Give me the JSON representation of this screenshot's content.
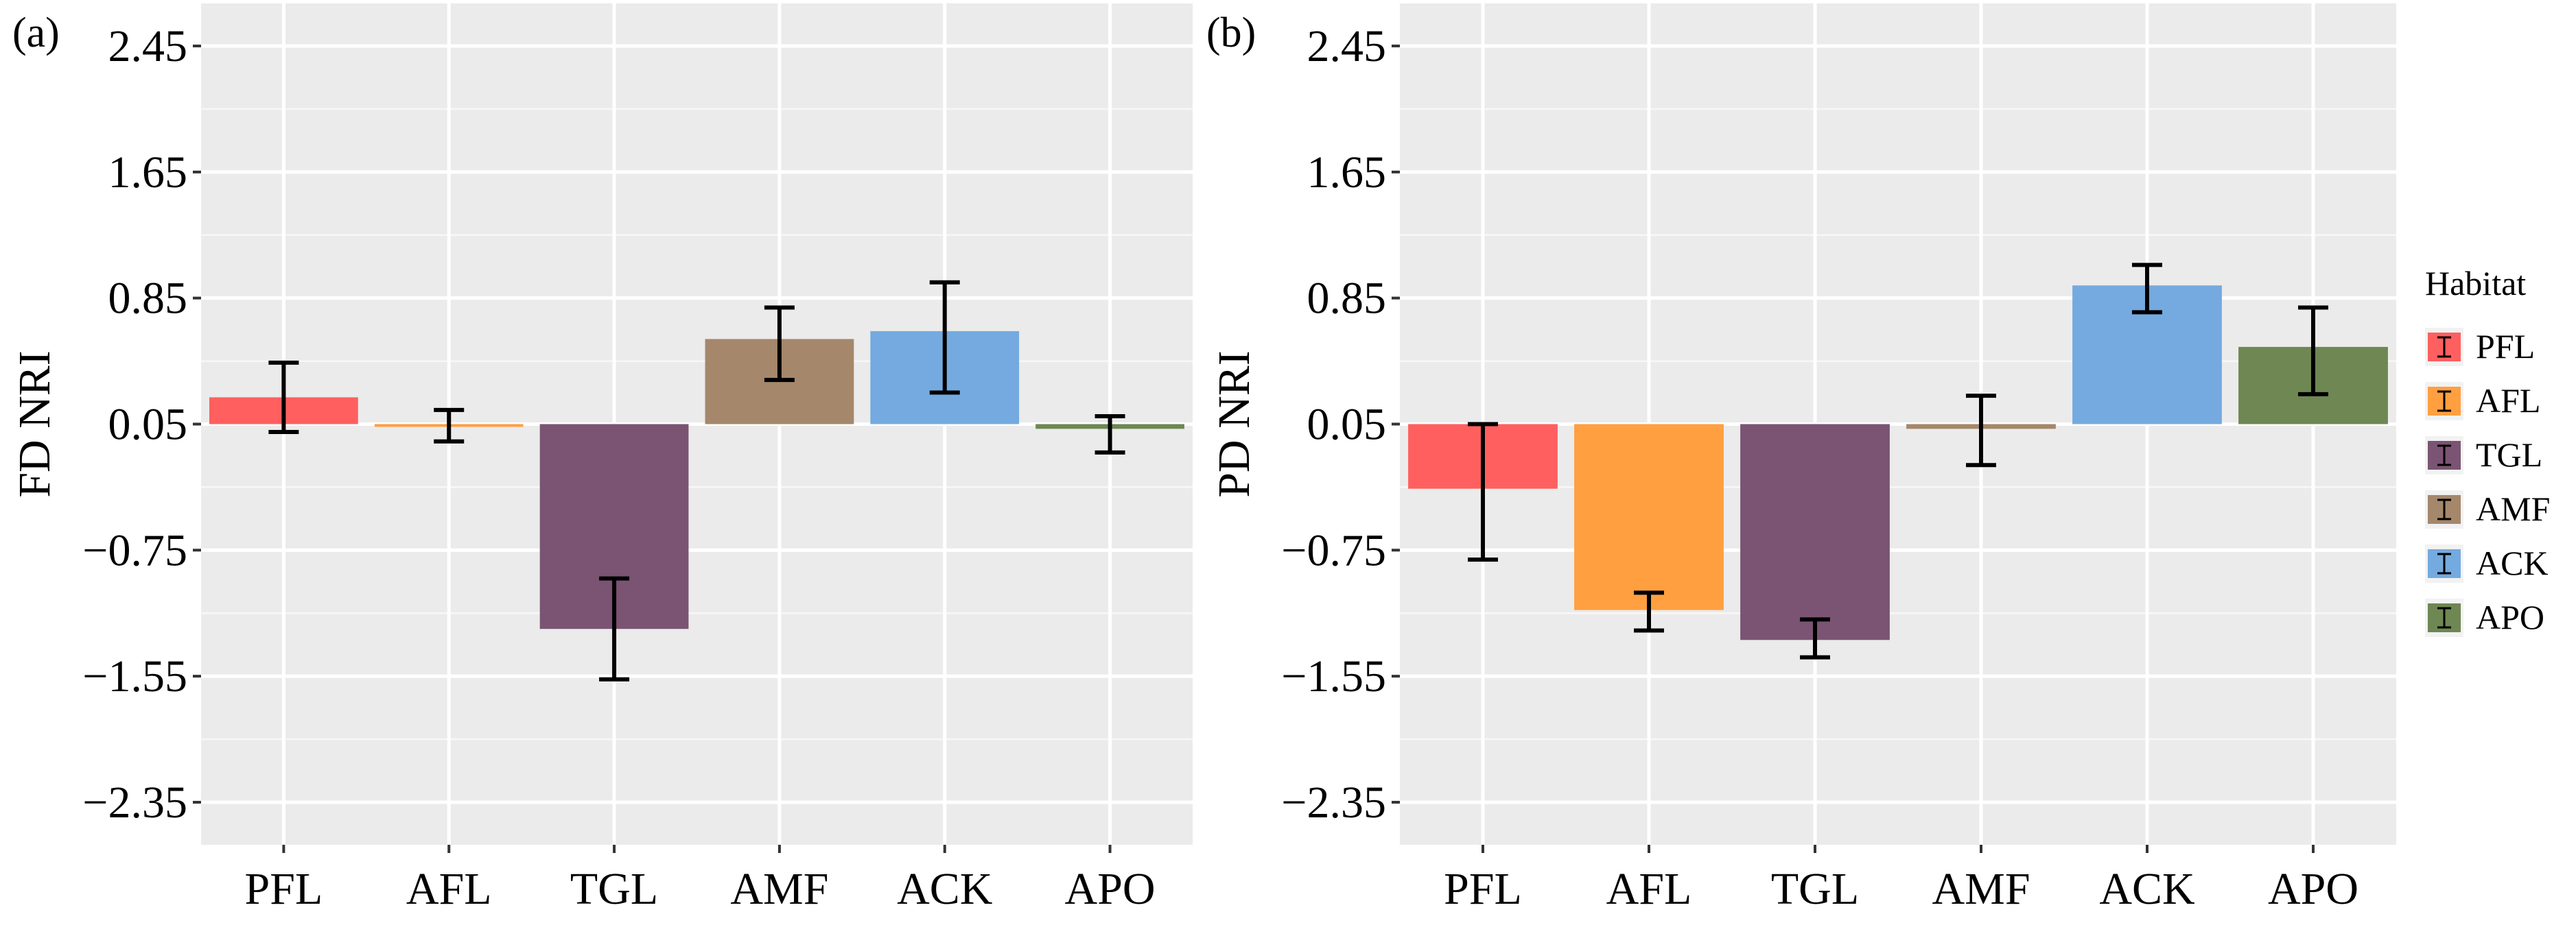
{
  "legend": {
    "title": "Habitat",
    "items": [
      {
        "label": "PFL",
        "color": "#FF5F5F"
      },
      {
        "label": "AFL",
        "color": "#FF9F40"
      },
      {
        "label": "TGL",
        "color": "#7A5472"
      },
      {
        "label": "AMF",
        "color": "#A5876B"
      },
      {
        "label": "ACK",
        "color": "#74AADF"
      },
      {
        "label": "APO",
        "color": "#6E8753"
      }
    ]
  },
  "chart_data": [
    {
      "type": "bar",
      "panel_label": "(a)",
      "ylabel": "FD NRI",
      "xlabel": "",
      "categories": [
        "PFL",
        "AFL",
        "TGL",
        "AMF",
        "ACK",
        "APO"
      ],
      "values": [
        0.22,
        0.05,
        -1.25,
        0.59,
        0.64,
        0.02
      ],
      "error_low": [
        0.0,
        -0.06,
        -1.57,
        0.33,
        0.25,
        -0.13
      ],
      "error_high": [
        0.44,
        0.14,
        -0.93,
        0.79,
        0.95,
        0.1
      ],
      "yticks": [
        "2.45",
        "1.65",
        "0.85",
        "0.05",
        "−0.75",
        "−1.55",
        "−2.35"
      ],
      "ytick_values": [
        2.45,
        1.65,
        0.85,
        0.05,
        -0.75,
        -1.55,
        -2.35
      ],
      "ylim": [
        -2.62,
        2.72
      ],
      "grid": true
    },
    {
      "type": "bar",
      "panel_label": "(b)",
      "ylabel": "PD NRI",
      "xlabel": "",
      "categories": [
        "PFL",
        "AFL",
        "TGL",
        "AMF",
        "ACK",
        "APO"
      ],
      "values": [
        -0.36,
        -1.13,
        -1.32,
        0.02,
        0.93,
        0.54
      ],
      "error_low": [
        -0.81,
        -1.26,
        -1.43,
        -0.21,
        0.76,
        0.24
      ],
      "error_high": [
        0.05,
        -1.02,
        -1.19,
        0.23,
        1.06,
        0.79
      ],
      "yticks": [
        "2.45",
        "1.65",
        "0.85",
        "0.05",
        "−0.75",
        "−1.55",
        "−2.35"
      ],
      "ytick_values": [
        2.45,
        1.65,
        0.85,
        0.05,
        -0.75,
        -1.55,
        -2.35
      ],
      "ylim": [
        -2.62,
        2.72
      ],
      "grid": true
    }
  ]
}
